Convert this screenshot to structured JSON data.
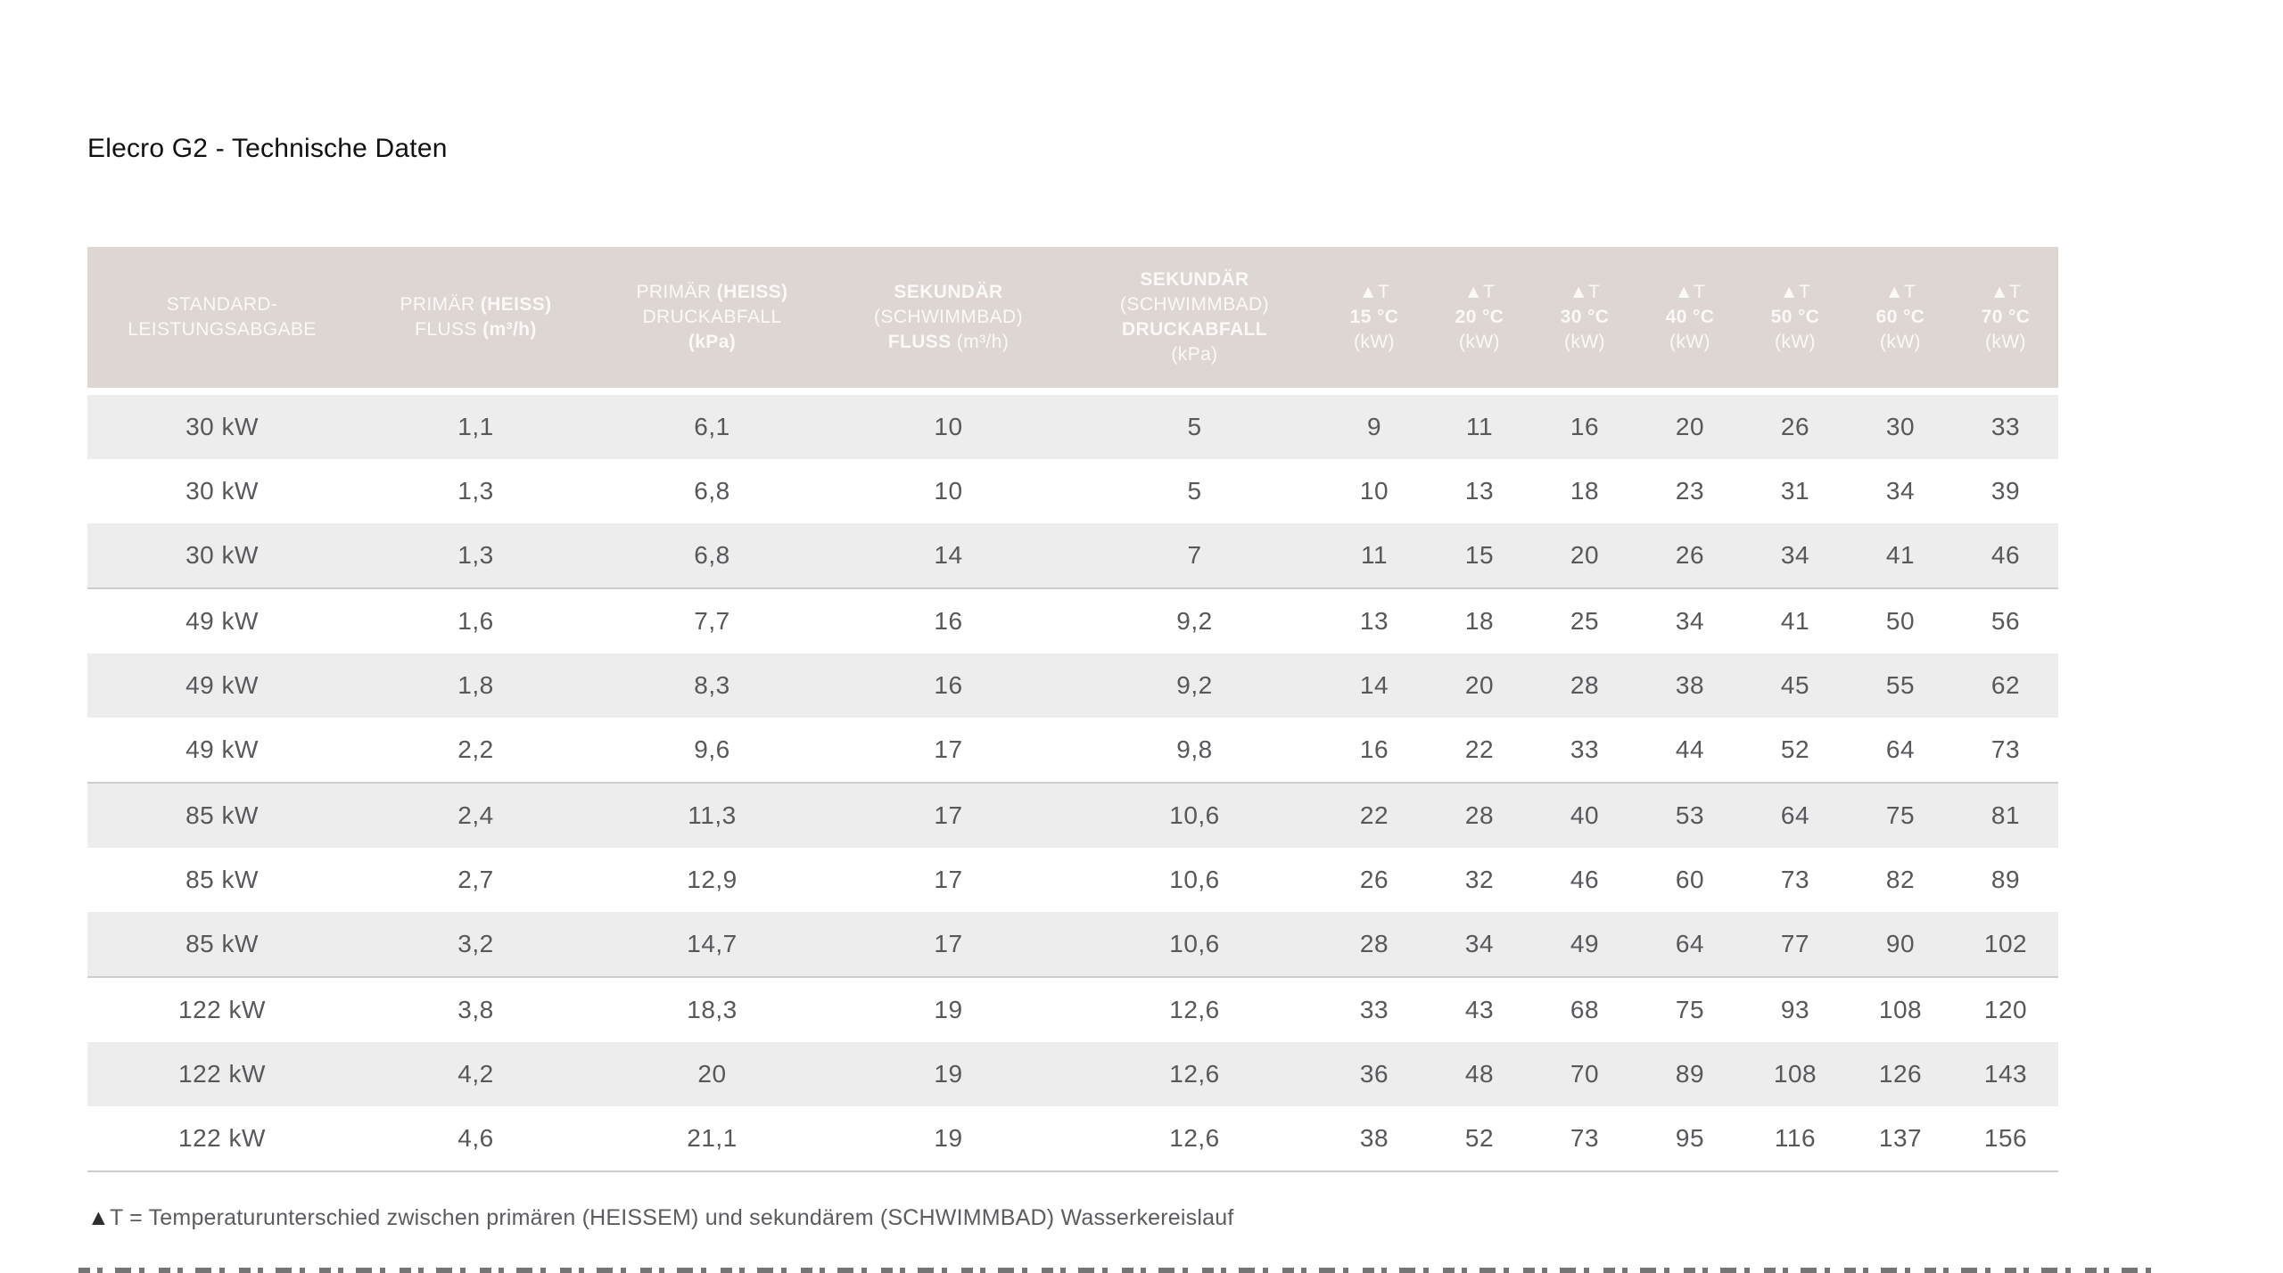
{
  "page": {
    "title": "Elecro G2 - Technische Daten"
  },
  "colors": {
    "header_bg": "#ddd6d3",
    "header_text": "#fbf9f8",
    "row_alt_bg": "#ededed",
    "row_bg": "#ffffff",
    "data_text": "#58585c",
    "separator": "#cfccca"
  },
  "table": {
    "columns": [
      {
        "lines": [
          [
            {
              "t": "STANDARD-",
              "b": false
            }
          ],
          [
            {
              "t": "LEISTUNGSABGABE",
              "b": false
            }
          ]
        ]
      },
      {
        "lines": [
          [
            {
              "t": "PRIMÄR ",
              "b": false
            },
            {
              "t": "(HEISS)",
              "b": true
            }
          ],
          [
            {
              "t": "FLUSS ",
              "b": false
            },
            {
              "t": "(m³/h)",
              "b": true
            }
          ]
        ]
      },
      {
        "lines": [
          [
            {
              "t": "PRIMÄR ",
              "b": false
            },
            {
              "t": "(HEISS)",
              "b": true
            }
          ],
          [
            {
              "t": "DRUCKABFALL",
              "b": false
            }
          ],
          [
            {
              "t": "(kPa)",
              "b": true
            }
          ]
        ]
      },
      {
        "lines": [
          [
            {
              "t": "SEKUNDÄR",
              "b": true
            }
          ],
          [
            {
              "t": "(SCHWIMMBAD)",
              "b": false
            }
          ],
          [
            {
              "t": "FLUSS ",
              "b": true
            },
            {
              "t": "(m³/h)",
              "b": false
            }
          ]
        ]
      },
      {
        "lines": [
          [
            {
              "t": "SEKUNDÄR",
              "b": true
            }
          ],
          [
            {
              "t": "(SCHWIMMBAD)",
              "b": false
            }
          ],
          [
            {
              "t": "DRUCKABFALL",
              "b": true
            }
          ],
          [
            {
              "t": "(kPa)",
              "b": false
            }
          ]
        ]
      },
      {
        "lines": [
          [
            {
              "t": "▲",
              "b": true
            },
            {
              "t": "T",
              "b": false
            }
          ],
          [
            {
              "t": "15 °C",
              "b": true
            }
          ],
          [
            {
              "t": "(kW)",
              "b": false
            }
          ]
        ]
      },
      {
        "lines": [
          [
            {
              "t": "▲",
              "b": true
            },
            {
              "t": "T",
              "b": false
            }
          ],
          [
            {
              "t": "20 °C",
              "b": true
            }
          ],
          [
            {
              "t": "(kW)",
              "b": false
            }
          ]
        ]
      },
      {
        "lines": [
          [
            {
              "t": "▲",
              "b": true
            },
            {
              "t": "T",
              "b": false
            }
          ],
          [
            {
              "t": "30 °C",
              "b": true
            }
          ],
          [
            {
              "t": "(kW)",
              "b": false
            }
          ]
        ]
      },
      {
        "lines": [
          [
            {
              "t": "▲",
              "b": true
            },
            {
              "t": "T",
              "b": false
            }
          ],
          [
            {
              "t": "40 °C",
              "b": true
            }
          ],
          [
            {
              "t": "(kW)",
              "b": false
            }
          ]
        ]
      },
      {
        "lines": [
          [
            {
              "t": "▲",
              "b": true
            },
            {
              "t": "T",
              "b": false
            }
          ],
          [
            {
              "t": "50 °C",
              "b": true
            }
          ],
          [
            {
              "t": "(kW)",
              "b": false
            }
          ]
        ]
      },
      {
        "lines": [
          [
            {
              "t": "▲",
              "b": true
            },
            {
              "t": "T",
              "b": false
            }
          ],
          [
            {
              "t": "60 °C",
              "b": true
            }
          ],
          [
            {
              "t": "(kW)",
              "b": false
            }
          ]
        ]
      },
      {
        "lines": [
          [
            {
              "t": "▲",
              "b": true
            },
            {
              "t": "T",
              "b": false
            }
          ],
          [
            {
              "t": "70 °C",
              "b": true
            }
          ],
          [
            {
              "t": "(kW)",
              "b": false
            }
          ]
        ]
      }
    ],
    "rows": [
      [
        "30 kW",
        "1,1",
        "6,1",
        "10",
        "5",
        "9",
        "11",
        "16",
        "20",
        "26",
        "30",
        "33"
      ],
      [
        "30 kW",
        "1,3",
        "6,8",
        "10",
        "5",
        "10",
        "13",
        "18",
        "23",
        "31",
        "34",
        "39"
      ],
      [
        "30 kW",
        "1,3",
        "6,8",
        "14",
        "7",
        "11",
        "15",
        "20",
        "26",
        "34",
        "41",
        "46"
      ],
      [
        "49 kW",
        "1,6",
        "7,7",
        "16",
        "9,2",
        "13",
        "18",
        "25",
        "34",
        "41",
        "50",
        "56"
      ],
      [
        "49 kW",
        "1,8",
        "8,3",
        "16",
        "9,2",
        "14",
        "20",
        "28",
        "38",
        "45",
        "55",
        "62"
      ],
      [
        "49 kW",
        "2,2",
        "9,6",
        "17",
        "9,8",
        "16",
        "22",
        "33",
        "44",
        "52",
        "64",
        "73"
      ],
      [
        "85 kW",
        "2,4",
        "11,3",
        "17",
        "10,6",
        "22",
        "28",
        "40",
        "53",
        "64",
        "75",
        "81"
      ],
      [
        "85 kW",
        "2,7",
        "12,9",
        "17",
        "10,6",
        "26",
        "32",
        "46",
        "60",
        "73",
        "82",
        "89"
      ],
      [
        "85 kW",
        "3,2",
        "14,7",
        "17",
        "10,6",
        "28",
        "34",
        "49",
        "64",
        "77",
        "90",
        "102"
      ],
      [
        "122 kW",
        "3,8",
        "18,3",
        "19",
        "12,6",
        "33",
        "43",
        "68",
        "75",
        "93",
        "108",
        "120"
      ],
      [
        "122 kW",
        "4,2",
        "20",
        "19",
        "12,6",
        "36",
        "48",
        "70",
        "89",
        "108",
        "126",
        "143"
      ],
      [
        "122 kW",
        "4,6",
        "21,1",
        "19",
        "12,6",
        "38",
        "52",
        "73",
        "95",
        "116",
        "137",
        "156"
      ]
    ],
    "group_separator_after": [
      3,
      6,
      9,
      12
    ]
  },
  "footnote": {
    "symbol": "▲",
    "text": "T = Temperaturunterschied zwischen primären (HEISSEM) und sekundärem (SCHWIMMBAD) Wasserkereislauf"
  }
}
